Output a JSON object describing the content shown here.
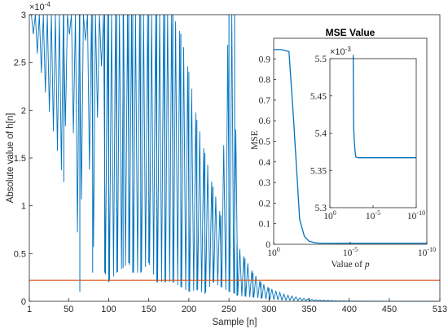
{
  "chart_data": [
    {
      "type": "line",
      "xlabel": "Sample [n]",
      "ylabel": "Absolute value of h[n]",
      "xlim": [
        1,
        513
      ],
      "ylim": [
        0,
        3
      ],
      "y_exponent": "×10",
      "y_exponent_power": "-4",
      "xticks": [
        "1",
        "50",
        "100",
        "150",
        "200",
        "250",
        "300",
        "350",
        "400",
        "450",
        "513"
      ],
      "yticks": [
        "0",
        "0.5",
        "1",
        "1.5",
        "2",
        "2.5",
        "3"
      ],
      "grid": false,
      "colors": {
        "impulse": "#0072bd",
        "threshold": "#d95319"
      },
      "threshold_y": 0.22,
      "series": [
        {
          "x": [
            1,
            44,
            50,
            64,
            70,
            80,
            90,
            95,
            100,
            110,
            118,
            125,
            130,
            140,
            150,
            160,
            170,
            180,
            190,
            200,
            210,
            220,
            230,
            240,
            250,
            257,
            260,
            270,
            280,
            290,
            300,
            320,
            340,
            360,
            380,
            400,
            450,
            513
          ],
          "y": [
            3,
            1.25,
            3,
            0.1,
            3,
            0.3,
            3,
            0.3,
            0.2,
            0.3,
            0.35,
            0.4,
            0.3,
            0.3,
            0.4,
            0.2,
            0.2,
            0.2,
            0.15,
            0.1,
            0.12,
            0.08,
            0.2,
            0.15,
            0.1,
            0.08,
            0.06,
            0.05,
            0.04,
            0.03,
            0.02,
            0.012,
            0.008,
            0.004,
            0.002,
            0.001,
            0.0005,
            0.0002
          ],
          "upper": [
            3,
            3,
            3,
            3,
            3,
            3,
            3,
            3,
            3,
            3,
            3,
            3,
            3,
            3,
            3,
            3,
            3,
            3,
            2.8,
            2.4,
            1.9,
            1.55,
            1.2,
            0.9,
            3,
            3,
            0.6,
            0.45,
            0.3,
            0.2,
            0.14,
            0.07,
            0.035,
            0.015,
            0.007,
            0.003,
            0.001,
            0.0003
          ]
        }
      ]
    },
    {
      "type": "line",
      "title": "MSE Value",
      "xlabel": "Value of p",
      "xlabel_main": "Value of ",
      "xlabel_var": "p",
      "ylabel": "MSE",
      "xscale": "log",
      "xlim": [
        1,
        1e-10
      ],
      "ylim": [
        0,
        1
      ],
      "xticks": [
        "10",
        "10",
        "10"
      ],
      "xtick_powers": [
        "0",
        "-5",
        "-10"
      ],
      "yticks": [
        "0",
        "0.1",
        "0.2",
        "0.3",
        "0.4",
        "0.5",
        "0.6",
        "0.7",
        "0.8",
        "0.9"
      ],
      "series": [
        {
          "x": [
            1,
            0.3,
            0.1,
            0.05,
            0.02,
            0.01,
            0.005,
            0.002,
            0.001,
            0.0001,
            1e-10
          ],
          "y": [
            0.945,
            0.945,
            0.935,
            0.6,
            0.12,
            0.04,
            0.015,
            0.008,
            0.006,
            0.0054,
            0.0054
          ]
        }
      ]
    },
    {
      "type": "line",
      "xscale": "log",
      "xlim": [
        1,
        1e-10
      ],
      "ylim": [
        5.3,
        5.5
      ],
      "y_exponent": "×10",
      "y_exponent_power": "-3",
      "xticks": [
        "10",
        "10",
        "10"
      ],
      "xtick_powers": [
        "0",
        "-5",
        "-10"
      ],
      "yticks": [
        "5.3",
        "5.35",
        "5.4",
        "5.45",
        "5.5"
      ],
      "series": [
        {
          "x": [
            0.002,
            0.0018,
            0.0015,
            0.0012,
            0.001,
            0.0005,
            0.0001,
            1e-10
          ],
          "y": [
            5.52,
            5.41,
            5.39,
            5.375,
            5.368,
            5.367,
            5.367,
            5.367
          ]
        }
      ]
    }
  ]
}
